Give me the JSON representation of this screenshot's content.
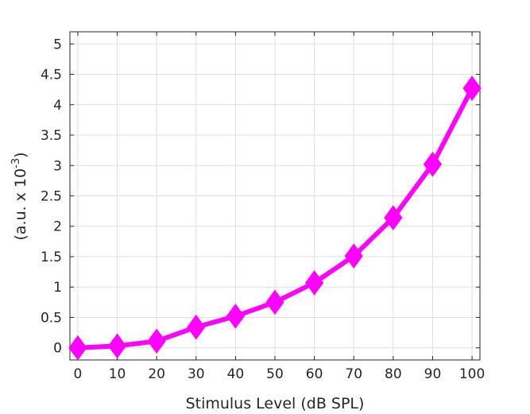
{
  "chart_data": {
    "type": "line",
    "title": "",
    "xlabel": "Stimulus Level (dB SPL)",
    "ylabel_prefix": "(a.u. x 10",
    "ylabel_exponent": "-3",
    "ylabel_suffix": ")",
    "xlim": [
      -2,
      102
    ],
    "ylim": [
      -0.2,
      5.2
    ],
    "x_ticks": [
      0,
      10,
      20,
      30,
      40,
      50,
      60,
      70,
      80,
      90,
      100
    ],
    "x_tick_labels": [
      "0",
      "10",
      "20",
      "30",
      "40",
      "50",
      "60",
      "70",
      "80",
      "90",
      "100"
    ],
    "y_ticks": [
      0,
      0.5,
      1,
      1.5,
      2,
      2.5,
      3,
      3.5,
      4,
      4.5,
      5
    ],
    "y_tick_labels": [
      "0",
      "0.5",
      "1",
      "1.5",
      "2",
      "2.5",
      "3",
      "3.5",
      "4",
      "4.5",
      "5"
    ],
    "grid": true,
    "series": [
      {
        "color": "#ff00ff",
        "marker": "diamond",
        "x": [
          0,
          10,
          20,
          30,
          40,
          50,
          60,
          70,
          80,
          90,
          100
        ],
        "y": [
          0.0,
          0.03,
          0.11,
          0.34,
          0.52,
          0.75,
          1.07,
          1.51,
          2.14,
          3.02,
          4.27
        ]
      }
    ]
  }
}
